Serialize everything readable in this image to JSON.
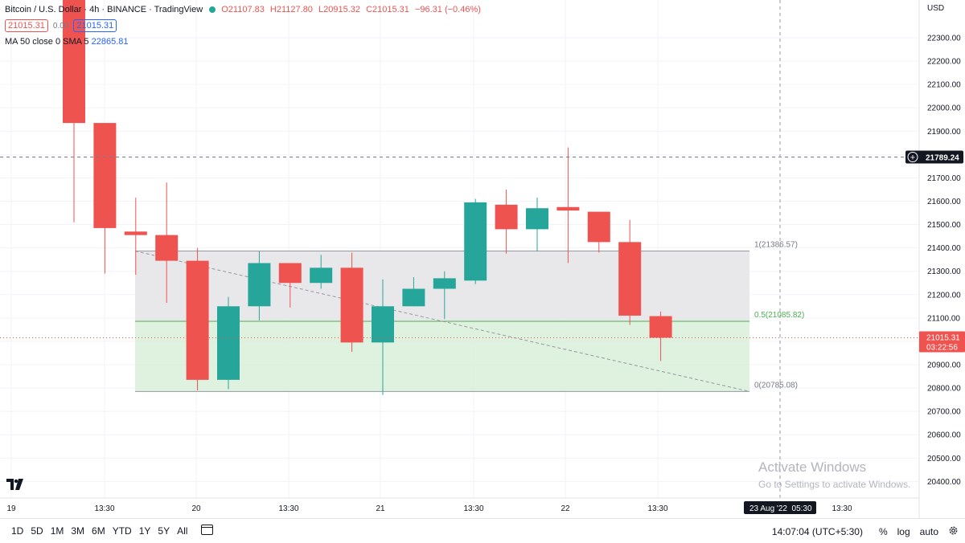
{
  "legend": {
    "symbol": "Bitcoin / U.S. Dollar · 4h · BINANCE · TradingView",
    "open": "O21107.83",
    "high": "H21127.80",
    "low": "L20915.32",
    "close": "C21015.31",
    "change": "−96.31 (−0.46%)",
    "sell_price": "21015.31",
    "spread": "0.00",
    "buy_price": "21015.31",
    "ma_label": "MA 50 close 0 SMA 5",
    "ma_value": "22865.81"
  },
  "price_axis": {
    "currency": "USD",
    "crosshair_price": "21789.24",
    "last_price": "21015.31",
    "countdown": "03:22:56"
  },
  "time_axis": {
    "crosshair_label": "23 Aug '22  05:30"
  },
  "fib": {
    "level_1": "1(21386.57)",
    "level_05": "0.5(21085.82)",
    "level_0": "0(20785.08)"
  },
  "bottom_bar": {
    "ranges": [
      "1D",
      "5D",
      "1M",
      "3M",
      "6M",
      "YTD",
      "1Y",
      "5Y",
      "All"
    ],
    "clock": "14:07:04 (UTC+5:30)",
    "percent": "%",
    "log": "log",
    "auto": "auto"
  },
  "watermark": {
    "line1": "Activate Windows",
    "line2": "Go to Settings to activate Windows."
  },
  "colors": {
    "up": "#26a69a",
    "down": "#ef5350",
    "fib_upper": "#e5e6e9",
    "fib_lower": "#dcf0dc",
    "fib_mid_line": "#4caf50"
  },
  "chart_data": {
    "type": "candlestick",
    "symbol": "BTCUSD",
    "interval": "4h",
    "y_ticks": [
      20400,
      20500,
      20600,
      20700,
      20800,
      20900,
      21000,
      21100,
      21200,
      21300,
      21400,
      21500,
      21600,
      21700,
      21800,
      21900,
      22000,
      22100,
      22200,
      22300
    ],
    "x_ticks": [
      "19",
      "13:30",
      "20",
      "13:30",
      "21",
      "13:30",
      "22",
      "13:30",
      "13:30"
    ],
    "candles": [
      {
        "open": 22500,
        "high": 22500,
        "low": 21510,
        "close": 21935
      },
      {
        "open": 21935,
        "high": 21935,
        "low": 21290,
        "close": 21485
      },
      {
        "open": 21470,
        "high": 21615,
        "low": 21285,
        "close": 21455
      },
      {
        "open": 21455,
        "high": 21680,
        "low": 21165,
        "close": 21345
      },
      {
        "open": 21345,
        "high": 21400,
        "low": 20790,
        "close": 20835
      },
      {
        "open": 20835,
        "high": 21190,
        "low": 20795,
        "close": 21150
      },
      {
        "open": 21150,
        "high": 21385,
        "low": 21090,
        "close": 21335
      },
      {
        "open": 21335,
        "high": 21335,
        "low": 21145,
        "close": 21250
      },
      {
        "open": 21250,
        "high": 21370,
        "low": 21225,
        "close": 21315
      },
      {
        "open": 21315,
        "high": 21380,
        "low": 20955,
        "close": 20995
      },
      {
        "open": 20995,
        "high": 21265,
        "low": 20770,
        "close": 21150
      },
      {
        "open": 21150,
        "high": 21275,
        "low": 21150,
        "close": 21225
      },
      {
        "open": 21225,
        "high": 21300,
        "low": 21095,
        "close": 21270
      },
      {
        "open": 21260,
        "high": 21610,
        "low": 21245,
        "close": 21595
      },
      {
        "open": 21585,
        "high": 21650,
        "low": 21375,
        "close": 21480
      },
      {
        "open": 21480,
        "high": 21615,
        "low": 21385,
        "close": 21570
      },
      {
        "open": 21575,
        "high": 21830,
        "low": 21335,
        "close": 21560
      },
      {
        "open": 21555,
        "high": 21555,
        "low": 21380,
        "close": 21425
      },
      {
        "open": 21425,
        "high": 21520,
        "low": 21070,
        "close": 21110
      },
      {
        "open": 21107.83,
        "high": 21127.8,
        "low": 20915.32,
        "close": 21015.31
      }
    ],
    "fib_retracement": {
      "level_1": 21386.57,
      "level_0.5": 21085.82,
      "level_0": 20785.08
    },
    "ylim": [
      20370,
      22420
    ]
  }
}
